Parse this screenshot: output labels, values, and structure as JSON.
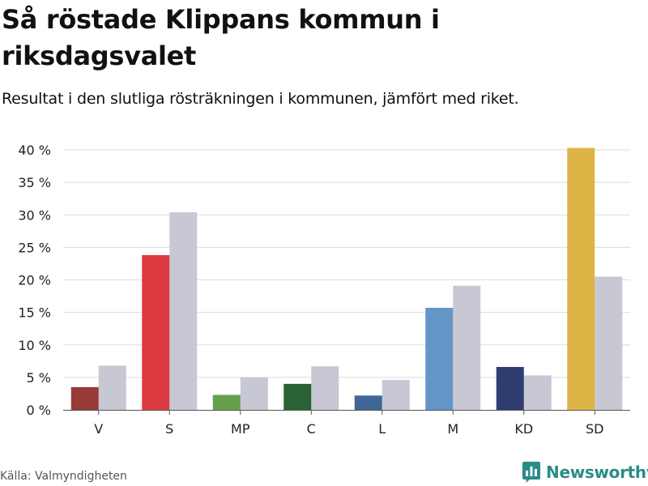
{
  "header": {
    "title": "Så röstade Klippans kommun i riksdagsvalet",
    "subtitle": "Resultat i den slutliga rösträkningen i kommunen, jämfört med riket."
  },
  "footer": {
    "source": "Källa: Valmyndigheten",
    "brand": "Newsworthy",
    "brand_icon": "bar-chart-logo-icon",
    "brand_color": "#2a8c86"
  },
  "chart_data": {
    "type": "bar",
    "categories": [
      "V",
      "S",
      "MP",
      "C",
      "L",
      "M",
      "KD",
      "SD"
    ],
    "series": [
      {
        "values": [
          3.5,
          23.8,
          2.3,
          4.0,
          2.2,
          15.7,
          6.6,
          40.3
        ],
        "colors": [
          "#983a37",
          "#db3a40",
          "#64a04d",
          "#2a6236",
          "#3f6694",
          "#6296c7",
          "#2e3c70",
          "#deb447"
        ]
      },
      {
        "values": [
          6.8,
          30.4,
          5.0,
          6.7,
          4.6,
          19.1,
          5.3,
          20.5
        ],
        "color": "#c8c7d4"
      }
    ],
    "yticks": [
      "0 %",
      "5 %",
      "10 %",
      "15 %",
      "20 %",
      "25 %",
      "30 %",
      "35 %",
      "40 %"
    ],
    "ylim": [
      0,
      40
    ],
    "xlabel": "",
    "ylabel": "",
    "grid": true,
    "legend": false
  }
}
